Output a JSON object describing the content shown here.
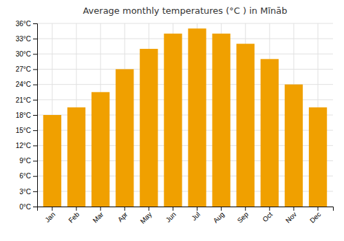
{
  "chart_data": {
    "type": "bar",
    "title": "Average monthly temperatures (°C ) in Mīnāb",
    "categories": [
      "Jan",
      "Feb",
      "Mar",
      "Apr",
      "May",
      "Jun",
      "Jul",
      "Aug",
      "Sep",
      "Oct",
      "Nov",
      "Dec"
    ],
    "values": [
      18.0,
      19.5,
      22.5,
      27.0,
      31.0,
      34.0,
      35.0,
      34.0,
      32.0,
      29.0,
      24.0,
      19.5
    ],
    "color": "#F0A000",
    "ylim": [
      0,
      36
    ],
    "yticks": [
      {
        "value": 0,
        "label": "0°C"
      },
      {
        "value": 3,
        "label": "3°C"
      },
      {
        "value": 6,
        "label": "6°C"
      },
      {
        "value": 9,
        "label": "9°C"
      },
      {
        "value": 12,
        "label": "12°C"
      },
      {
        "value": 15,
        "label": "15°C"
      },
      {
        "value": 18,
        "label": "18°C"
      },
      {
        "value": 21,
        "label": "21°C"
      },
      {
        "value": 24,
        "label": "24°C"
      },
      {
        "value": 27,
        "label": "27°C"
      },
      {
        "value": 30,
        "label": "30°C"
      },
      {
        "value": 33,
        "label": "33°C"
      },
      {
        "value": 36,
        "label": "36°C"
      }
    ],
    "grid": true
  }
}
